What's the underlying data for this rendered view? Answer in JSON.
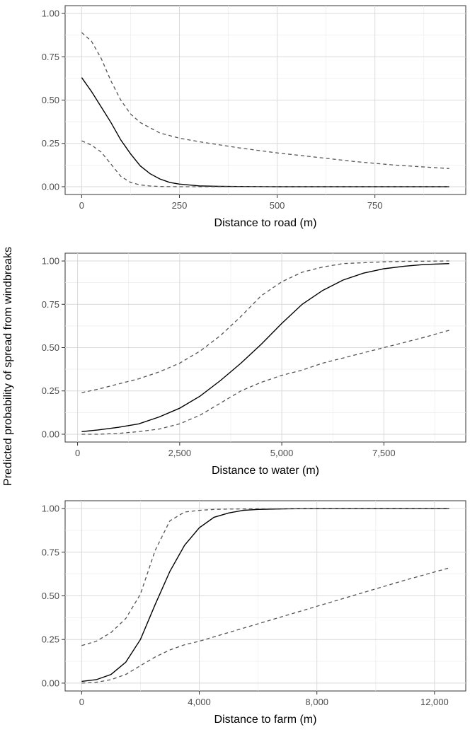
{
  "ylabel": "Predicted probability of spread from windbreaks",
  "colors": {
    "fit": "#000000",
    "ci": "#555555",
    "grid": "#d9d9d9",
    "border": "#333333"
  },
  "chart_data": [
    {
      "type": "line",
      "xlabel": "Distance to road (m)",
      "xlim": [
        0,
        940
      ],
      "ylim": [
        0,
        1
      ],
      "xticks": [
        0,
        250,
        500,
        750
      ],
      "xtick_labels": [
        "0",
        "250",
        "500",
        "750"
      ],
      "yticks": [
        0,
        0.25,
        0.5,
        0.75,
        1
      ],
      "ytick_labels": [
        "0.00",
        "0.25",
        "0.50",
        "0.75",
        "1.00"
      ],
      "grid": true,
      "series": [
        {
          "role": "fit",
          "x": [
            0,
            25,
            50,
            75,
            100,
            125,
            150,
            175,
            200,
            225,
            250,
            300,
            350,
            400,
            500,
            600,
            700,
            800,
            940
          ],
          "y": [
            0.63,
            0.55,
            0.46,
            0.37,
            0.27,
            0.19,
            0.12,
            0.075,
            0.045,
            0.025,
            0.015,
            0.005,
            0.002,
            0.001,
            0.0,
            0.0,
            0.0,
            0.0,
            0.0
          ]
        },
        {
          "role": "upper",
          "x": [
            0,
            25,
            50,
            75,
            100,
            125,
            150,
            175,
            200,
            250,
            300,
            400,
            500,
            600,
            700,
            800,
            940
          ],
          "y": [
            0.89,
            0.84,
            0.74,
            0.61,
            0.5,
            0.42,
            0.37,
            0.34,
            0.31,
            0.28,
            0.26,
            0.225,
            0.195,
            0.17,
            0.145,
            0.125,
            0.105
          ]
        },
        {
          "role": "lower",
          "x": [
            0,
            25,
            50,
            75,
            100,
            125,
            150,
            175,
            200,
            250,
            300,
            940
          ],
          "y": [
            0.265,
            0.24,
            0.2,
            0.13,
            0.06,
            0.025,
            0.01,
            0.004,
            0.001,
            0.0,
            0.0,
            0.0
          ]
        }
      ]
    },
    {
      "type": "line",
      "xlabel": "Distance to water (m)",
      "xlim": [
        100,
        9100
      ],
      "ylim": [
        0,
        1
      ],
      "xticks": [
        0,
        2500,
        5000,
        7500
      ],
      "xtick_labels": [
        "0",
        "2,500",
        "5,000",
        "7,500"
      ],
      "yticks": [
        0,
        0.25,
        0.5,
        0.75,
        1
      ],
      "ytick_labels": [
        "0.00",
        "0.25",
        "0.50",
        "0.75",
        "1.00"
      ],
      "grid": true,
      "series": [
        {
          "role": "fit",
          "x": [
            100,
            500,
            1000,
            1500,
            2000,
            2500,
            3000,
            3500,
            4000,
            4500,
            5000,
            5500,
            6000,
            6500,
            7000,
            7500,
            8000,
            8500,
            9100
          ],
          "y": [
            0.015,
            0.025,
            0.04,
            0.06,
            0.1,
            0.15,
            0.22,
            0.31,
            0.41,
            0.52,
            0.64,
            0.75,
            0.83,
            0.89,
            0.93,
            0.955,
            0.97,
            0.98,
            0.985
          ]
        },
        {
          "role": "upper",
          "x": [
            100,
            500,
            1000,
            1500,
            2000,
            2500,
            3000,
            3500,
            4000,
            4500,
            5000,
            5500,
            6000,
            6500,
            7000,
            7500,
            8000,
            8500,
            9100
          ],
          "y": [
            0.24,
            0.26,
            0.29,
            0.32,
            0.36,
            0.41,
            0.48,
            0.57,
            0.68,
            0.8,
            0.88,
            0.935,
            0.965,
            0.985,
            0.99,
            0.995,
            0.998,
            0.999,
            1.0
          ]
        },
        {
          "role": "lower",
          "x": [
            100,
            500,
            1000,
            1500,
            2000,
            2500,
            3000,
            3500,
            4000,
            4500,
            5000,
            5500,
            6000,
            6500,
            7000,
            7500,
            8000,
            8500,
            9100
          ],
          "y": [
            0.0,
            0.0,
            0.005,
            0.015,
            0.03,
            0.06,
            0.11,
            0.18,
            0.25,
            0.3,
            0.34,
            0.37,
            0.41,
            0.44,
            0.47,
            0.5,
            0.53,
            0.56,
            0.6
          ]
        }
      ]
    },
    {
      "type": "line",
      "xlabel": "Distance to farm (m)",
      "xlim": [
        0,
        12500
      ],
      "ylim": [
        0,
        1
      ],
      "xticks": [
        0,
        4000,
        8000,
        12000
      ],
      "xtick_labels": [
        "0",
        "4,000",
        "8,000",
        "12,000"
      ],
      "yticks": [
        0,
        0.25,
        0.5,
        0.75,
        1
      ],
      "ytick_labels": [
        "0.00",
        "0.25",
        "0.50",
        "0.75",
        "1.00"
      ],
      "grid": true,
      "series": [
        {
          "role": "fit",
          "x": [
            0,
            500,
            1000,
            1500,
            2000,
            2500,
            3000,
            3500,
            4000,
            4500,
            5000,
            5500,
            6000,
            7000,
            8000,
            10000,
            12500
          ],
          "y": [
            0.01,
            0.02,
            0.05,
            0.12,
            0.25,
            0.45,
            0.64,
            0.79,
            0.89,
            0.95,
            0.975,
            0.99,
            0.995,
            0.999,
            1.0,
            1.0,
            1.0
          ]
        },
        {
          "role": "upper",
          "x": [
            0,
            500,
            1000,
            1500,
            2000,
            2500,
            3000,
            3500,
            4000,
            4500,
            5000,
            6000,
            8000,
            10000,
            12500
          ],
          "y": [
            0.215,
            0.24,
            0.29,
            0.37,
            0.51,
            0.76,
            0.93,
            0.98,
            0.99,
            0.995,
            0.997,
            0.999,
            1.0,
            1.0,
            1.0
          ]
        },
        {
          "role": "lower",
          "x": [
            0,
            500,
            1000,
            1500,
            2000,
            2500,
            3000,
            3500,
            4000,
            5000,
            6000,
            7000,
            8000,
            9000,
            10000,
            11000,
            12500
          ],
          "y": [
            0.0,
            0.005,
            0.02,
            0.05,
            0.1,
            0.15,
            0.19,
            0.22,
            0.24,
            0.29,
            0.34,
            0.39,
            0.44,
            0.49,
            0.54,
            0.59,
            0.66
          ]
        }
      ]
    }
  ]
}
